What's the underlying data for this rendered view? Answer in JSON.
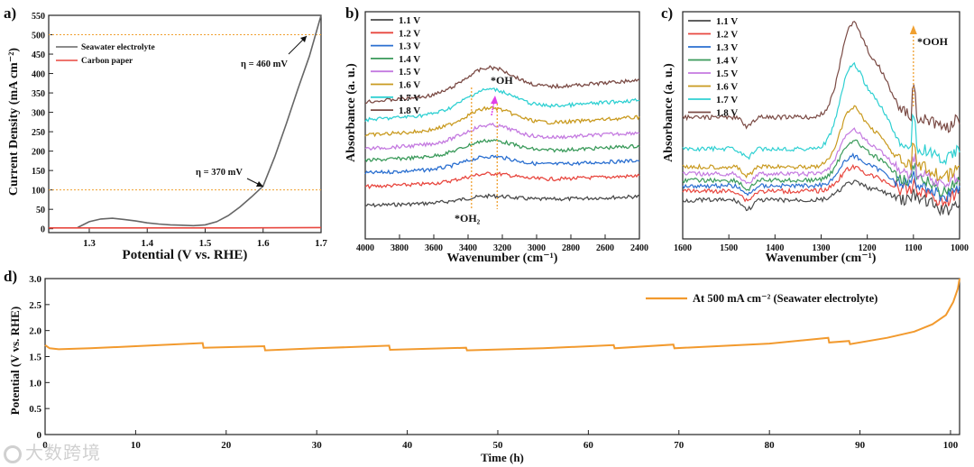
{
  "watermark": "大数跨境",
  "colors": {
    "sw": "#666666",
    "cp": "#e8473f",
    "ref": "#f0a030",
    "long": "#f29a2e",
    "v1.1": "#4a4a4a",
    "v1.2": "#e8473f",
    "v1.3": "#2a6fd0",
    "v1.4": "#3a9a5a",
    "v1.5": "#c47ae0",
    "v1.6": "#c99a1f",
    "v1.7": "#2fd0d2",
    "v1.8": "#7a4a44",
    "arrow_pink": "#e040e8",
    "arrow_orange": "#f0a030"
  },
  "chart_data": [
    {
      "panel": "a)",
      "type": "line",
      "xlabel": "Potential (V vs. RHE)",
      "ylabel": "Current Density (mA cm⁻²)",
      "xlim": [
        1.23,
        1.7
      ],
      "ylim": [
        -10,
        550
      ],
      "xticks": [
        "1.3",
        "1.4",
        "1.5",
        "1.6",
        "1.7"
      ],
      "xtick_values": [
        1.3,
        1.4,
        1.5,
        1.6,
        1.7
      ],
      "yticks": [
        "0",
        "50",
        "100",
        "150",
        "200",
        "250",
        "300",
        "350",
        "400",
        "450",
        "500",
        "550"
      ],
      "ytick_values": [
        0,
        50,
        100,
        150,
        200,
        250,
        300,
        350,
        400,
        450,
        500,
        550
      ],
      "reference_lines": [
        100,
        500
      ],
      "series": [
        {
          "name": "Seawater electrolyte",
          "color_key": "sw",
          "x": [
            1.28,
            1.3,
            1.32,
            1.34,
            1.36,
            1.38,
            1.4,
            1.42,
            1.44,
            1.46,
            1.48,
            1.5,
            1.52,
            1.54,
            1.56,
            1.58,
            1.6,
            1.62,
            1.64,
            1.66,
            1.68,
            1.7
          ],
          "values": [
            3,
            18,
            25,
            27,
            24,
            20,
            15,
            12,
            10,
            9,
            8,
            10,
            18,
            34,
            56,
            82,
            110,
            185,
            270,
            360,
            445,
            550
          ]
        },
        {
          "name": "Carbon paper",
          "color_key": "cp",
          "x": [
            1.23,
            1.4,
            1.55,
            1.7
          ],
          "values": [
            2,
            2,
            2,
            3
          ]
        }
      ],
      "annotations": [
        "η = 460 mV",
        "η = 370 mV"
      ]
    },
    {
      "panel": "b)",
      "type": "line",
      "xlabel": "Wavenumber (cm⁻¹)",
      "ylabel": "Absorbance (a. u.)",
      "xlim": [
        4000,
        2400
      ],
      "xticks": [
        "4000",
        "3800",
        "3600",
        "3400",
        "3200",
        "3000",
        "2800",
        "2600",
        "2400"
      ],
      "xtick_values": [
        4000,
        3800,
        3600,
        3400,
        3200,
        3000,
        2800,
        2600,
        2400
      ],
      "legend": [
        "1.1 V",
        "1.2 V",
        "1.3 V",
        "1.4 V",
        "1.5 V",
        "1.6 V",
        "1.7 V",
        "1.8 V"
      ],
      "offsets": [
        0,
        1,
        2,
        3,
        4,
        5,
        6,
        7
      ],
      "band_positions": [
        3380,
        3230
      ],
      "annotations": [
        "*OH",
        "*OH₂"
      ]
    },
    {
      "panel": "c)",
      "type": "line",
      "xlabel": "Wavenumber (cm⁻¹)",
      "ylabel": "Absorbance (a. u.)",
      "xlim": [
        1600,
        1000
      ],
      "xticks": [
        "1600",
        "1500",
        "1400",
        "1300",
        "1200",
        "1100",
        "1000"
      ],
      "xtick_values": [
        1600,
        1500,
        1400,
        1300,
        1200,
        1100,
        1000
      ],
      "legend": [
        "1.1 V",
        "1.2 V",
        "1.3 V",
        "1.4 V",
        "1.5 V",
        "1.6 V",
        "1.7 V",
        "1.8 V"
      ],
      "band_positions": [
        1100
      ],
      "annotations": [
        "*OOH"
      ]
    },
    {
      "panel": "d)",
      "type": "line",
      "xlabel": "Time (h)",
      "ylabel": "Potential (V vs. RHE)",
      "xlim": [
        0,
        101
      ],
      "ylim": [
        0,
        3.0
      ],
      "xticks": [
        "0",
        "10",
        "20",
        "30",
        "40",
        "50",
        "60",
        "70",
        "80",
        "90",
        "100"
      ],
      "xtick_values": [
        0,
        10,
        20,
        30,
        40,
        50,
        60,
        70,
        80,
        90,
        100
      ],
      "yticks": [
        "0",
        "0.5",
        "1.0",
        "1.5",
        "2.0",
        "2.5",
        "3.0"
      ],
      "ytick_values": [
        0,
        0.5,
        1.0,
        1.5,
        2.0,
        2.5,
        3.0
      ],
      "series": [
        {
          "name": "At 500 mA cm⁻² (Seawater electrolyte)",
          "color_key": "long",
          "x": [
            0,
            0.5,
            1.5,
            5,
            10,
            17.4,
            17.5,
            24.2,
            24.3,
            30,
            38.0,
            38.1,
            46.5,
            46.6,
            55,
            62.8,
            62.9,
            69.4,
            69.5,
            80,
            86.5,
            86.6,
            88.8,
            88.9,
            93,
            96,
            98,
            99.5,
            100.3,
            100.8,
            101
          ],
          "values": [
            1.72,
            1.66,
            1.64,
            1.66,
            1.7,
            1.76,
            1.67,
            1.7,
            1.62,
            1.66,
            1.71,
            1.63,
            1.67,
            1.62,
            1.66,
            1.72,
            1.66,
            1.73,
            1.66,
            1.75,
            1.86,
            1.77,
            1.8,
            1.74,
            1.86,
            1.98,
            2.12,
            2.3,
            2.55,
            2.8,
            3.0
          ]
        }
      ]
    }
  ]
}
